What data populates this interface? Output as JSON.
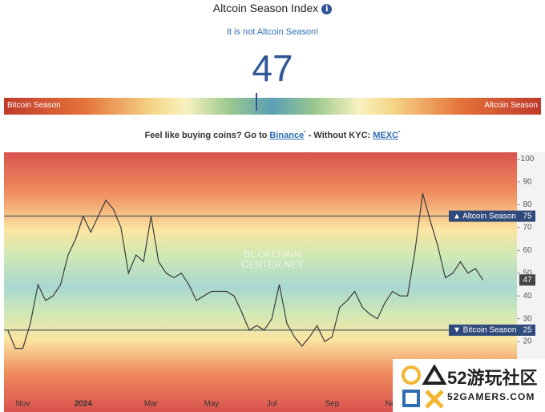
{
  "header": {
    "title": "Altcoin Season Index",
    "status": "It is not Altcoin Season!",
    "value": 47,
    "gauge_left": "Bitcoin Season",
    "gauge_right": "Altcoin Season",
    "gauge_lim": [
      0,
      100
    ]
  },
  "promo": {
    "text1": "Feel like buying coins? Go to",
    "link1": "Binance",
    "text2": "- Without KYC:",
    "link2": "MEXC"
  },
  "chart_data": {
    "type": "line",
    "color": "#3a3a3a",
    "watermark": [
      "BL  CKCHAIN",
      "CENTER.NET"
    ],
    "categories": [
      null,
      null,
      "Nov",
      null,
      null,
      null,
      null,
      null,
      null,
      null,
      "2024",
      null,
      null,
      null,
      null,
      null,
      null,
      null,
      null,
      "Mar",
      null,
      null,
      null,
      null,
      null,
      null,
      null,
      "May",
      null,
      null,
      null,
      null,
      null,
      null,
      null,
      "Jul",
      null,
      null,
      null,
      null,
      null,
      null,
      null,
      "Sep",
      null,
      null,
      null,
      null,
      null,
      null,
      null,
      "Nov",
      null,
      null,
      null,
      null,
      null,
      null,
      null,
      null,
      null,
      null,
      null,
      null,
      null,
      null,
      null,
      null
    ],
    "values": [
      25,
      17,
      17,
      28,
      45,
      38,
      40,
      45,
      58,
      65,
      75,
      68,
      75,
      82,
      78,
      70,
      50,
      58,
      55,
      75,
      55,
      50,
      48,
      50,
      45,
      38,
      40,
      42,
      42,
      42,
      40,
      33,
      25,
      27,
      25,
      30,
      45,
      28,
      22,
      18,
      22,
      27,
      20,
      22,
      35,
      38,
      42,
      35,
      32,
      30,
      37,
      42,
      40,
      40,
      60,
      85,
      73,
      62,
      48,
      50,
      55,
      50,
      52,
      47,
      null,
      null,
      null,
      null
    ],
    "ylim": [
      0,
      103
    ],
    "yticks": [
      20,
      30,
      40,
      50,
      60,
      70,
      80,
      90,
      100
    ],
    "reference_lines": [
      {
        "label": "▲ Altcoin Season",
        "value": 75
      },
      {
        "label": "▼ Bitcoin Season",
        "value": 25
      }
    ],
    "current": 47
  },
  "watermark": {
    "title": "52游玩社区",
    "site": "52GAMERS.COM"
  }
}
